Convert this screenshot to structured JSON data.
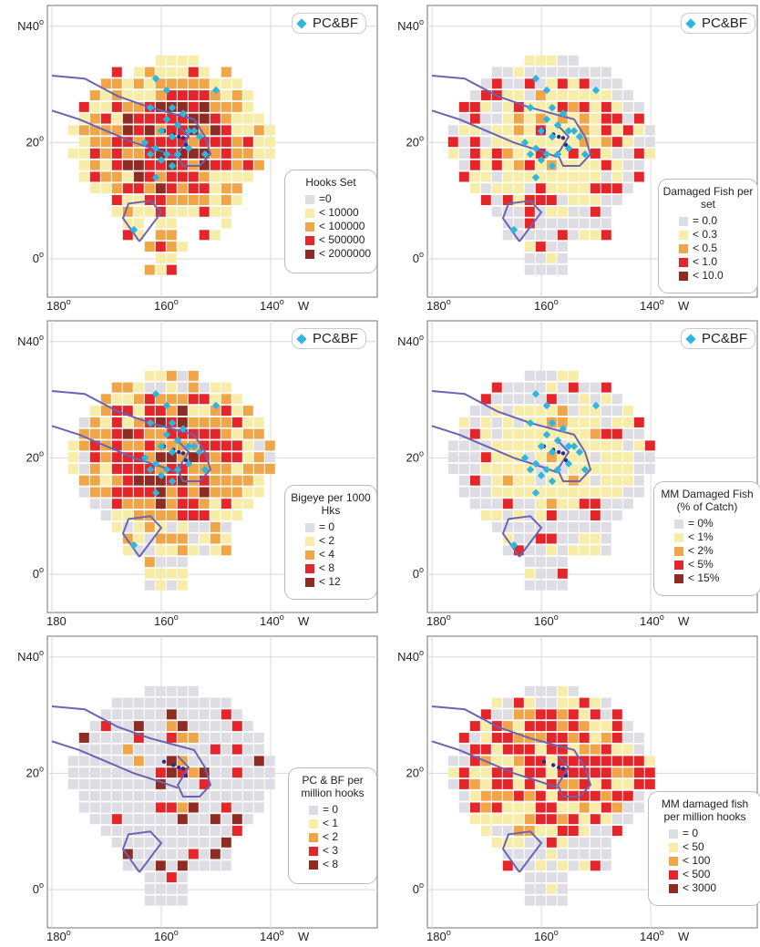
{
  "layout_labels": {
    "pc_legend": "PC&BF"
  },
  "colors": {
    "zero": "#dddde3",
    "c1": "#f7eda8",
    "c2": "#f1a549",
    "c3": "#e4252a",
    "c4": "#8e2b22",
    "marker": "#2fb6df",
    "boundary": "#6a64b4",
    "islands": "#2b2b8c"
  },
  "chart_data": [
    {
      "type": "heatmap",
      "title": "Hooks Set",
      "legend": [
        {
          "label": "=0",
          "color": "zero"
        },
        {
          "label": "< 10000",
          "color": "c1"
        },
        {
          "label": "< 100000",
          "color": "c2"
        },
        {
          "label": "< 500000",
          "color": "c3"
        },
        {
          "label": "< 2000000",
          "color": "c4"
        }
      ],
      "show_pc_markers": true,
      "xticks": [
        {
          "text": "180",
          "sup": "o"
        },
        {
          "text": "160",
          "sup": "o"
        },
        {
          "text": "140",
          "sup": "o"
        },
        {
          "text": "W",
          "sup": ""
        }
      ],
      "yticks": [
        {
          "text": "N40",
          "sup": "o"
        },
        {
          "text": "20",
          "sup": "o"
        },
        {
          "text": "0",
          "sup": "o"
        }
      ],
      "grid": {
        "lon_min": -180,
        "lon_max": -125,
        "lat_min": -5,
        "lat_max": 42
      }
    },
    {
      "type": "heatmap",
      "title": "Damaged Fish per set",
      "legend": [
        {
          "label": "= 0.0",
          "color": "zero"
        },
        {
          "label": "< 0.3",
          "color": "c1"
        },
        {
          "label": "< 0.5",
          "color": "c2"
        },
        {
          "label": "< 1.0",
          "color": "c3"
        },
        {
          "label": "< 10.0",
          "color": "c4"
        }
      ],
      "show_pc_markers": true,
      "xticks": [
        {
          "text": "180",
          "sup": "o"
        },
        {
          "text": "160",
          "sup": "o"
        },
        {
          "text": "140",
          "sup": "o"
        },
        {
          "text": "W",
          "sup": ""
        }
      ],
      "yticks": [
        {
          "text": "N40",
          "sup": "o"
        },
        {
          "text": "20",
          "sup": "o"
        },
        {
          "text": "0",
          "sup": "o"
        }
      ],
      "grid": {
        "lon_min": -180,
        "lon_max": -125,
        "lat_min": -5,
        "lat_max": 42
      }
    },
    {
      "type": "heatmap",
      "title": "Bigeye per 1000 Hks",
      "legend": [
        {
          "label": "= 0",
          "color": "zero"
        },
        {
          "label": "< 2",
          "color": "c1"
        },
        {
          "label": "< 4",
          "color": "c2"
        },
        {
          "label": "< 8",
          "color": "c3"
        },
        {
          "label": "< 12",
          "color": "c4"
        }
      ],
      "show_pc_markers": true,
      "xticks": [
        {
          "text": "180",
          "sup": ""
        },
        {
          "text": "160",
          "sup": "o"
        },
        {
          "text": "140",
          "sup": "o"
        },
        {
          "text": "W",
          "sup": ""
        }
      ],
      "yticks": [
        {
          "text": "N40",
          "sup": "o"
        },
        {
          "text": "20",
          "sup": "o"
        },
        {
          "text": "0",
          "sup": "o"
        }
      ],
      "grid": {
        "lon_min": -180,
        "lon_max": -125,
        "lat_min": -5,
        "lat_max": 42
      }
    },
    {
      "type": "heatmap",
      "title": "MM Damaged Fish (% of Catch)",
      "legend": [
        {
          "label": "= 0%",
          "color": "zero"
        },
        {
          "label": "< 1%",
          "color": "c1"
        },
        {
          "label": "< 2%",
          "color": "c2"
        },
        {
          "label": "< 5%",
          "color": "c3"
        },
        {
          "label": "< 15%",
          "color": "c4"
        }
      ],
      "show_pc_markers": true,
      "xticks": [
        {
          "text": "180",
          "sup": "o"
        },
        {
          "text": "160",
          "sup": "o"
        },
        {
          "text": "140",
          "sup": "o"
        },
        {
          "text": "W",
          "sup": ""
        }
      ],
      "yticks": [
        {
          "text": "N40",
          "sup": "o"
        },
        {
          "text": "20",
          "sup": "o"
        },
        {
          "text": "0",
          "sup": "o"
        }
      ],
      "grid": {
        "lon_min": -180,
        "lon_max": -125,
        "lat_min": -5,
        "lat_max": 42
      }
    },
    {
      "type": "heatmap",
      "title": "PC & BF per million hooks",
      "legend": [
        {
          "label": "= 0",
          "color": "zero"
        },
        {
          "label": "< 1",
          "color": "c1"
        },
        {
          "label": "< 2",
          "color": "c2"
        },
        {
          "label": "< 3",
          "color": "c3"
        },
        {
          "label": "< 8",
          "color": "c4"
        }
      ],
      "show_pc_markers": false,
      "xticks": [
        {
          "text": "180",
          "sup": "o"
        },
        {
          "text": "160",
          "sup": "o"
        },
        {
          "text": "140",
          "sup": "o"
        },
        {
          "text": "W",
          "sup": ""
        }
      ],
      "yticks": [
        {
          "text": "N40",
          "sup": "o"
        },
        {
          "text": "20",
          "sup": "o"
        },
        {
          "text": "0",
          "sup": "o"
        }
      ],
      "grid": {
        "lon_min": -180,
        "lon_max": -125,
        "lat_min": -5,
        "lat_max": 42
      }
    },
    {
      "type": "heatmap",
      "title": "MM damaged fish per million hooks",
      "legend": [
        {
          "label": "= 0",
          "color": "zero"
        },
        {
          "label": "< 50",
          "color": "c1"
        },
        {
          "label": "< 100",
          "color": "c2"
        },
        {
          "label": "< 500",
          "color": "c3"
        },
        {
          "label": "< 3000",
          "color": "c4"
        }
      ],
      "show_pc_markers": false,
      "xticks": [
        {
          "text": "180",
          "sup": "o"
        },
        {
          "text": "160",
          "sup": "o"
        },
        {
          "text": "140",
          "sup": "o"
        },
        {
          "text": "W",
          "sup": ""
        }
      ],
      "yticks": [
        {
          "text": "N40",
          "sup": "o"
        },
        {
          "text": "20",
          "sup": "o"
        },
        {
          "text": "0",
          "sup": "o"
        }
      ],
      "grid": {
        "lon_min": -180,
        "lon_max": -125,
        "lat_min": -5,
        "lat_max": 42
      }
    }
  ]
}
